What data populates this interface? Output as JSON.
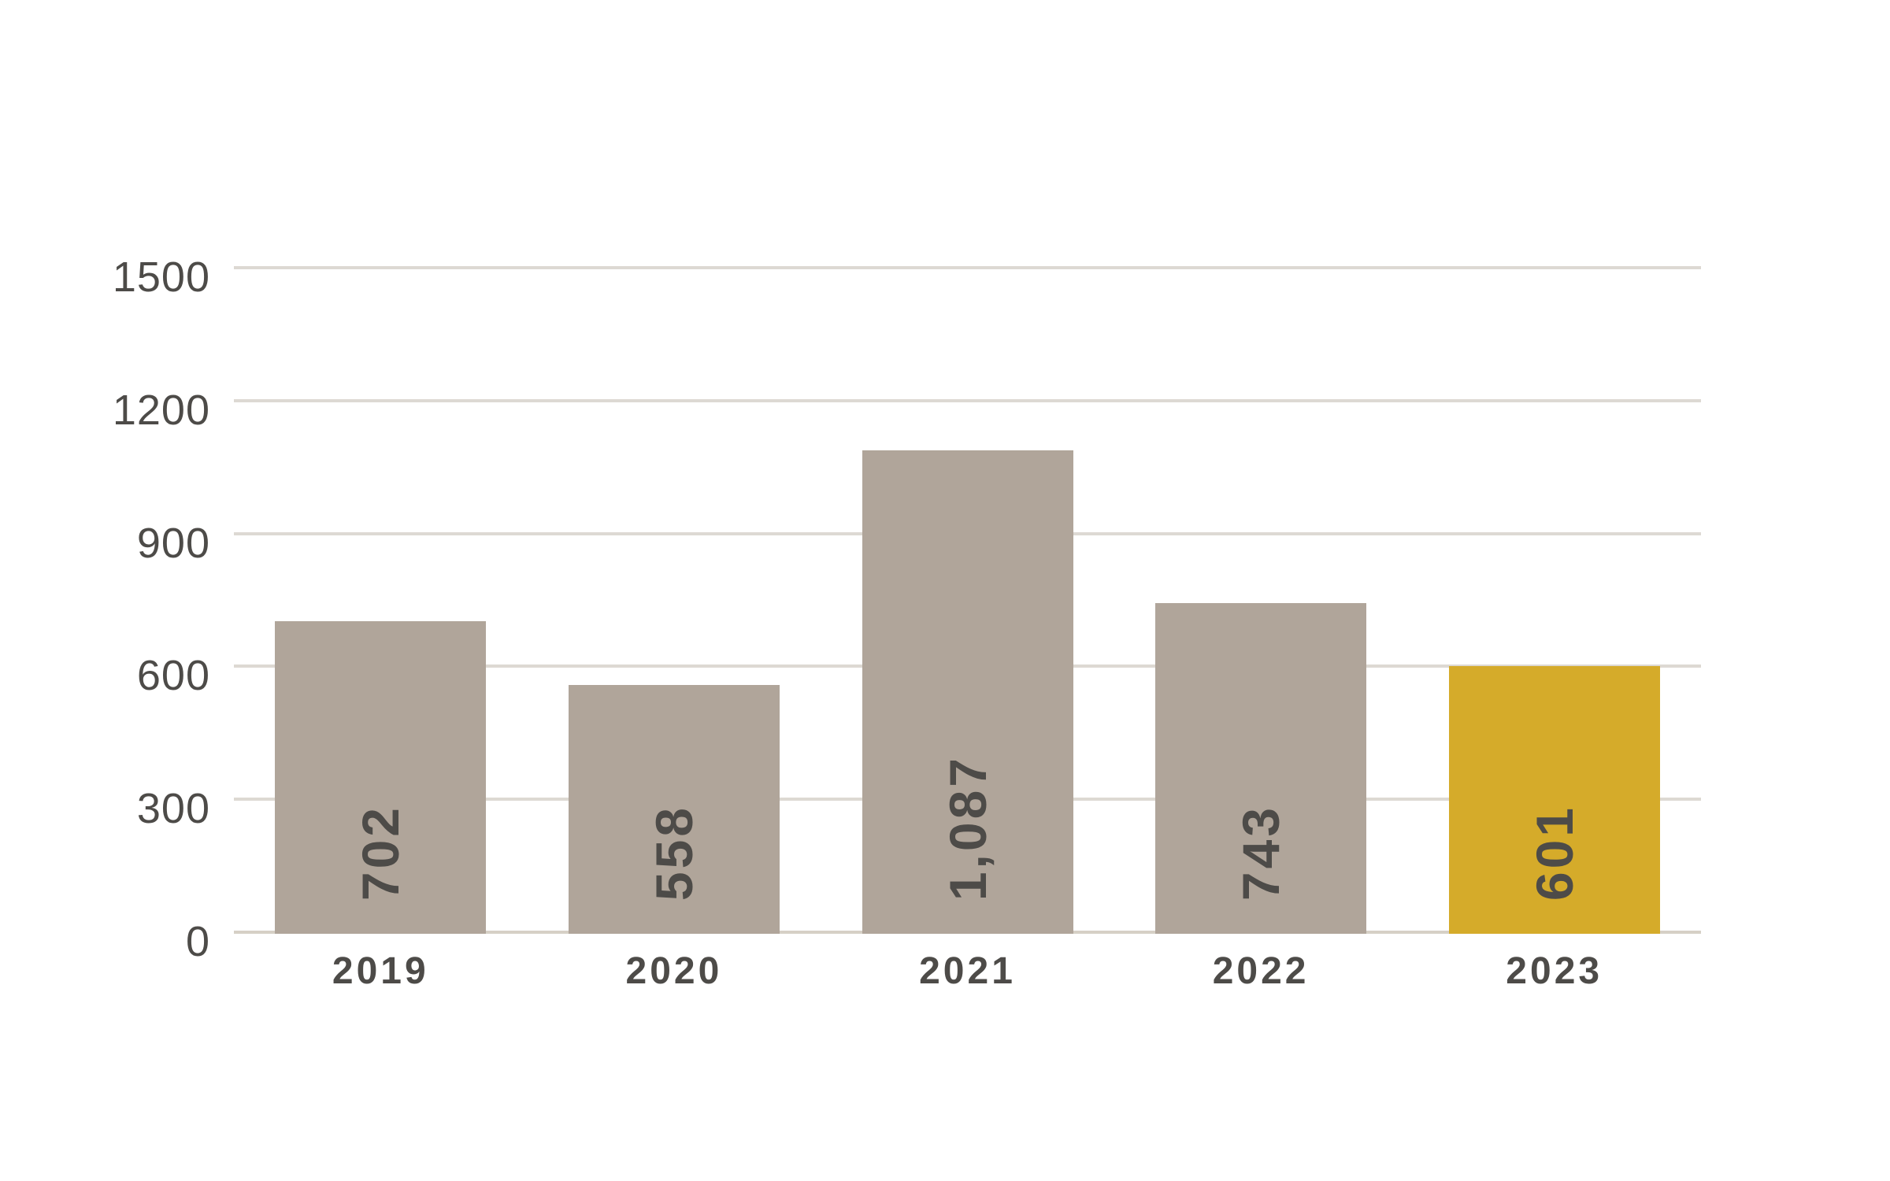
{
  "chart_data": {
    "type": "bar",
    "title": "",
    "xlabel": "",
    "ylabel": "",
    "categories": [
      "2019",
      "2020",
      "2021",
      "2022",
      "2023"
    ],
    "series": [
      {
        "name": "value",
        "values": [
          702,
          558,
          1087,
          743,
          601
        ],
        "value_labels": [
          "702",
          "558",
          "1,087",
          "743",
          "601"
        ]
      }
    ],
    "value_label_rotation_deg": -90,
    "value_label_position": "inside-bottom",
    "highlight_index": 4,
    "ylim": [
      0,
      1500
    ],
    "yticks": [
      0,
      300,
      600,
      900,
      1200,
      1500
    ],
    "ytick_labels": [
      "0",
      "300",
      "600",
      "900",
      "1200",
      "1500"
    ],
    "grid": "horizontal",
    "legend": "none",
    "colors": {
      "bar": "#b0a59a",
      "highlight_bar": "#d5ab2a",
      "text": "#4d4b48",
      "gridline": "#ddd9d3",
      "baseline": "#d6d0c6",
      "background": "#ffffff"
    }
  }
}
